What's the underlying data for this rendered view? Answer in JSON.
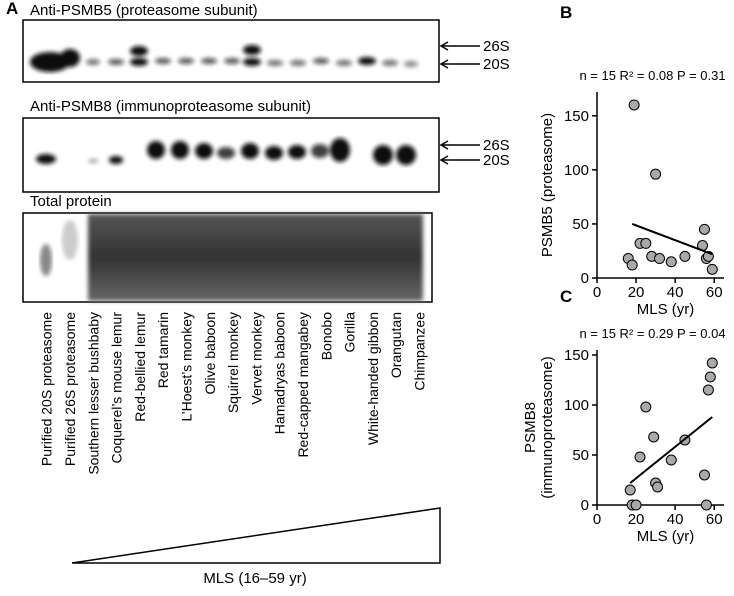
{
  "panel_a": {
    "label": "A",
    "blot1_title": "Anti-PSMB5 (proteasome subunit)",
    "blot2_title": "Anti-PSMB8 (immunoproteasome subunit)",
    "blot3_title": "Total protein",
    "markers": [
      "26S",
      "20S"
    ],
    "lanes": [
      "Purified 20S proteasome",
      "Purified 26S proteasome",
      "Southern lesser bushbaby",
      "Coquerel’s mouse lemur",
      "Red-bellied lemur",
      "Red tamarin",
      "L’Hoest’s monkey",
      "Olive baboon",
      "Squirrel monkey",
      "Vervet monkey",
      "Hamadryas baboon",
      "Red-capped mangabey",
      "Bonobo",
      "Gorilla",
      "White-handed gibbon",
      "Orangutan",
      "Chimpanzee"
    ],
    "wedge_label": "MLS (16–59 yr)"
  },
  "chart_data": [
    {
      "type": "scatter",
      "label": "B",
      "title": "n = 15 R² = 0.08 P = 0.31",
      "xlabel": "MLS (yr)",
      "ylabel": [
        "PSMB5 (proteasome)"
      ],
      "x": [
        16,
        18,
        19,
        22,
        25,
        28,
        30,
        32,
        38,
        45,
        54,
        55,
        56,
        57,
        59
      ],
      "values": [
        18,
        12,
        160,
        32,
        32,
        20,
        96,
        18,
        15,
        20,
        30,
        45,
        18,
        20,
        8
      ],
      "fit": {
        "x": [
          18,
          59
        ],
        "y": [
          50,
          22
        ]
      },
      "xlim": [
        0,
        65
      ],
      "xticks": [
        0,
        20,
        40,
        60
      ],
      "ylim": [
        0,
        172
      ],
      "yticks": [
        0,
        50,
        100,
        150
      ],
      "color": "#a9a9a9"
    },
    {
      "type": "scatter",
      "label": "C",
      "title": "n = 15 R² = 0.29 P = 0.04",
      "xlabel": "MLS (yr)",
      "ylabel": [
        "PSMB8",
        "(immunoproteasome)"
      ],
      "x": [
        17,
        18,
        20,
        22,
        25,
        29,
        30,
        31,
        38,
        45,
        55,
        56,
        57,
        58,
        59
      ],
      "values": [
        15,
        0,
        0,
        48,
        98,
        68,
        22,
        18,
        45,
        65,
        30,
        0,
        115,
        128,
        142
      ],
      "fit": {
        "x": [
          17,
          59
        ],
        "y": [
          22,
          88
        ]
      },
      "xlim": [
        0,
        65
      ],
      "xticks": [
        0,
        20,
        40,
        60
      ],
      "ylim": [
        0,
        155
      ],
      "yticks": [
        0,
        50,
        100,
        150
      ],
      "color": "#a9a9a9"
    }
  ]
}
